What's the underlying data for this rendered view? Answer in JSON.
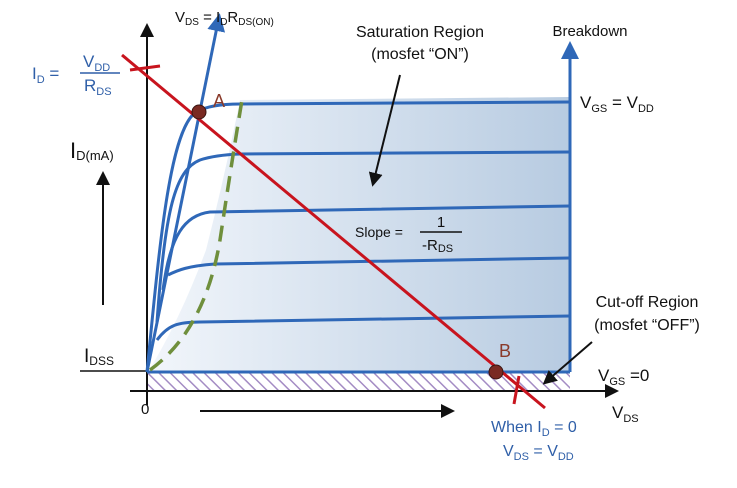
{
  "colors": {
    "curve": "#2f68b8",
    "load_line": "#c8141e",
    "pinch_off": "#6f8f3c",
    "point": "#7a2a22",
    "label_blue": "#2f5fa8",
    "axis": "#111111"
  },
  "labels": {
    "vds_equation": {
      "v": "V",
      "v_sub": "DS",
      "eq": " = I",
      "i_sub": "D",
      "r": "R",
      "r_sub": "DS(ON)"
    },
    "saturation": {
      "line1": "Saturation Region",
      "line2": "(mosfet “ON”)"
    },
    "breakdown": "Breakdown",
    "vgs_top": {
      "v": "V",
      "v_sub": "GS",
      "eq": " = V",
      "dd": "DD"
    },
    "vgs_zero": {
      "v": "V",
      "v_sub": "GS",
      "eq": " =0"
    },
    "id_eq": {
      "i": "I",
      "i_sub": "D",
      "eq": " = ",
      "num": "V",
      "num_sub": "DD",
      "den": "R",
      "den_sub": "DS"
    },
    "id_axis": {
      "i": "I",
      "i_sub": "D(mA)"
    },
    "idss": {
      "i": "I",
      "i_sub": "DSS"
    },
    "slope": {
      "text": "Slope = ",
      "num": "1",
      "den": "-R",
      "den_sub": "DS"
    },
    "cutoff": {
      "line1": "Cut-off Region",
      "line2": "(mosfet “OFF”)"
    },
    "vds_axis": {
      "v": "V",
      "v_sub": "DS"
    },
    "origin": "0",
    "point_a": "A",
    "point_b": "B",
    "when": {
      "pre": "When I",
      "sub": "D",
      "post": " = 0"
    },
    "vds_vdd": {
      "v": "V",
      "v_sub": "DS",
      "eq": " = V",
      "dd": "DD"
    }
  }
}
